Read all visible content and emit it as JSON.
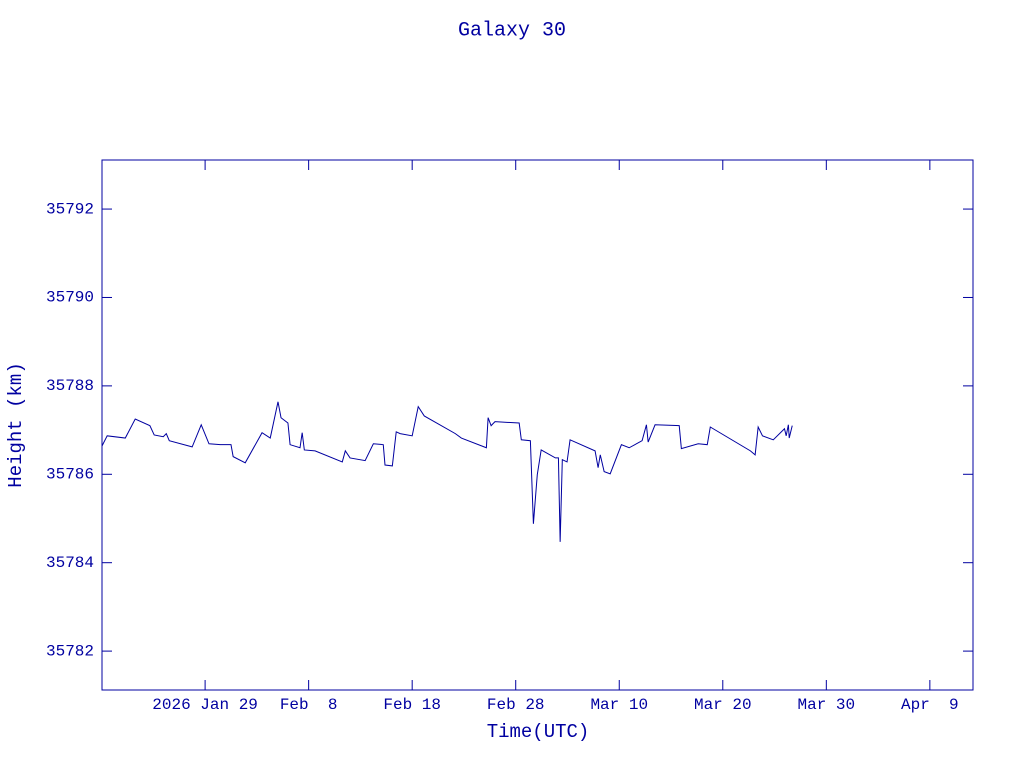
{
  "chart_data": {
    "type": "line",
    "title": "Galaxy 30",
    "xlabel": "Time(UTC)",
    "ylabel": "Height (km)",
    "color": "#0000a0",
    "grid": false,
    "xlim": [
      "2026-01-19T01:00",
      "2026-04-13T04:00"
    ],
    "xticks": [
      {
        "value": "2026-01-29",
        "label": "2026 Jan 29"
      },
      {
        "value": "2026-02-08",
        "label": "Feb  8"
      },
      {
        "value": "2026-02-18",
        "label": "Feb 18"
      },
      {
        "value": "2026-02-28",
        "label": "Feb 28"
      },
      {
        "value": "2026-03-10",
        "label": "Mar 10"
      },
      {
        "value": "2026-03-20",
        "label": "Mar 20"
      },
      {
        "value": "2026-03-30",
        "label": "Mar 30"
      },
      {
        "value": "2026-04-09",
        "label": "Apr  9"
      }
    ],
    "ylim": [
      35781.12,
      35793.11
    ],
    "yticks": [
      35782,
      35784,
      35786,
      35788,
      35790,
      35792
    ],
    "x": [
      "2026-01-19T01:00",
      "2026-01-19T13:00",
      "2026-01-21T07:00",
      "2026-01-22T06:00",
      "2026-01-23T16:00",
      "2026-01-24T02:00",
      "2026-01-24T23:00",
      "2026-01-25T06:00",
      "2026-01-25T13:00",
      "2026-01-27T18:00",
      "2026-01-28T15:00",
      "2026-01-29T09:00",
      "2026-01-30T11:00",
      "2026-01-31T12:00",
      "2026-01-31T17:00",
      "2026-02-01T21:00",
      "2026-02-03T12:00",
      "2026-02-04T07:00",
      "2026-02-05T01:00",
      "2026-02-05T08:00",
      "2026-02-06T00:00",
      "2026-02-06T05:00",
      "2026-02-07T04:00",
      "2026-02-07T09:00",
      "2026-02-07T14:00",
      "2026-02-08T15:00",
      "2026-02-11T06:00",
      "2026-02-11T13:00",
      "2026-02-12T00:00",
      "2026-02-13T11:00",
      "2026-02-14T06:00",
      "2026-02-15T05:00",
      "2026-02-15T09:00",
      "2026-02-16T02:00",
      "2026-02-16T11:00",
      "2026-02-16T20:00",
      "2026-02-18T00:00",
      "2026-02-18T14:00",
      "2026-02-19T04:00",
      "2026-02-22T04:00",
      "2026-02-22T18:00",
      "2026-02-25T04:00",
      "2026-02-25T08:00",
      "2026-02-25T15:00",
      "2026-02-26T00:00",
      "2026-02-28T08:00",
      "2026-02-28T13:00",
      "2026-03-01T10:00",
      "2026-03-01T17:00",
      "2026-03-02T02:00",
      "2026-03-02T11:00",
      "2026-03-03T20:00",
      "2026-03-04T03:00",
      "2026-03-04T07:00",
      "2026-03-04T12:00",
      "2026-03-04T23:00",
      "2026-03-05T06:00",
      "2026-03-07T16:00",
      "2026-03-07T23:00",
      "2026-03-08T04:00",
      "2026-03-08T13:00",
      "2026-03-09T03:00",
      "2026-03-10T05:00",
      "2026-03-10T23:00",
      "2026-03-12T05:00",
      "2026-03-12T15:00",
      "2026-03-12T19:00",
      "2026-03-13T11:00",
      "2026-03-15T19:00",
      "2026-03-16T00:00",
      "2026-03-17T15:00",
      "2026-03-18T12:00",
      "2026-03-18T19:00",
      "2026-03-22T16:00",
      "2026-03-23T03:00",
      "2026-03-23T10:00",
      "2026-03-23T20:00",
      "2026-03-24T21:00",
      "2026-03-25T23:00",
      "2026-03-26T03:00",
      "2026-03-26T08:00",
      "2026-03-26T10:00",
      "2026-03-26T17:00"
    ],
    "values": [
      35786.64,
      35786.87,
      35786.82,
      35787.25,
      35787.1,
      35786.89,
      35786.85,
      35786.92,
      35786.76,
      35786.62,
      35787.12,
      35786.69,
      35786.67,
      35786.67,
      35786.4,
      35786.26,
      35786.94,
      35786.82,
      35787.64,
      35787.28,
      35787.16,
      35786.67,
      35786.6,
      35786.94,
      35786.55,
      35786.53,
      35786.28,
      35786.53,
      35786.37,
      35786.31,
      35786.69,
      35786.67,
      35786.21,
      35786.19,
      35786.96,
      35786.92,
      35786.87,
      35787.53,
      35787.32,
      35786.92,
      35786.82,
      35786.6,
      35787.28,
      35787.1,
      35787.19,
      35787.16,
      35786.78,
      35786.76,
      35784.88,
      35785.99,
      35786.55,
      35786.37,
      35786.37,
      35784.47,
      35786.33,
      35786.28,
      35786.78,
      35786.53,
      35786.15,
      35786.44,
      35786.06,
      35786.01,
      35786.67,
      35786.6,
      35786.76,
      35787.12,
      35786.73,
      35787.12,
      35787.1,
      35786.58,
      35786.69,
      35786.67,
      35787.07,
      35786.53,
      35786.44,
      35787.07,
      35786.87,
      35786.78,
      35787.03,
      35786.87,
      35787.12,
      35786.82,
      35787.1
    ]
  }
}
